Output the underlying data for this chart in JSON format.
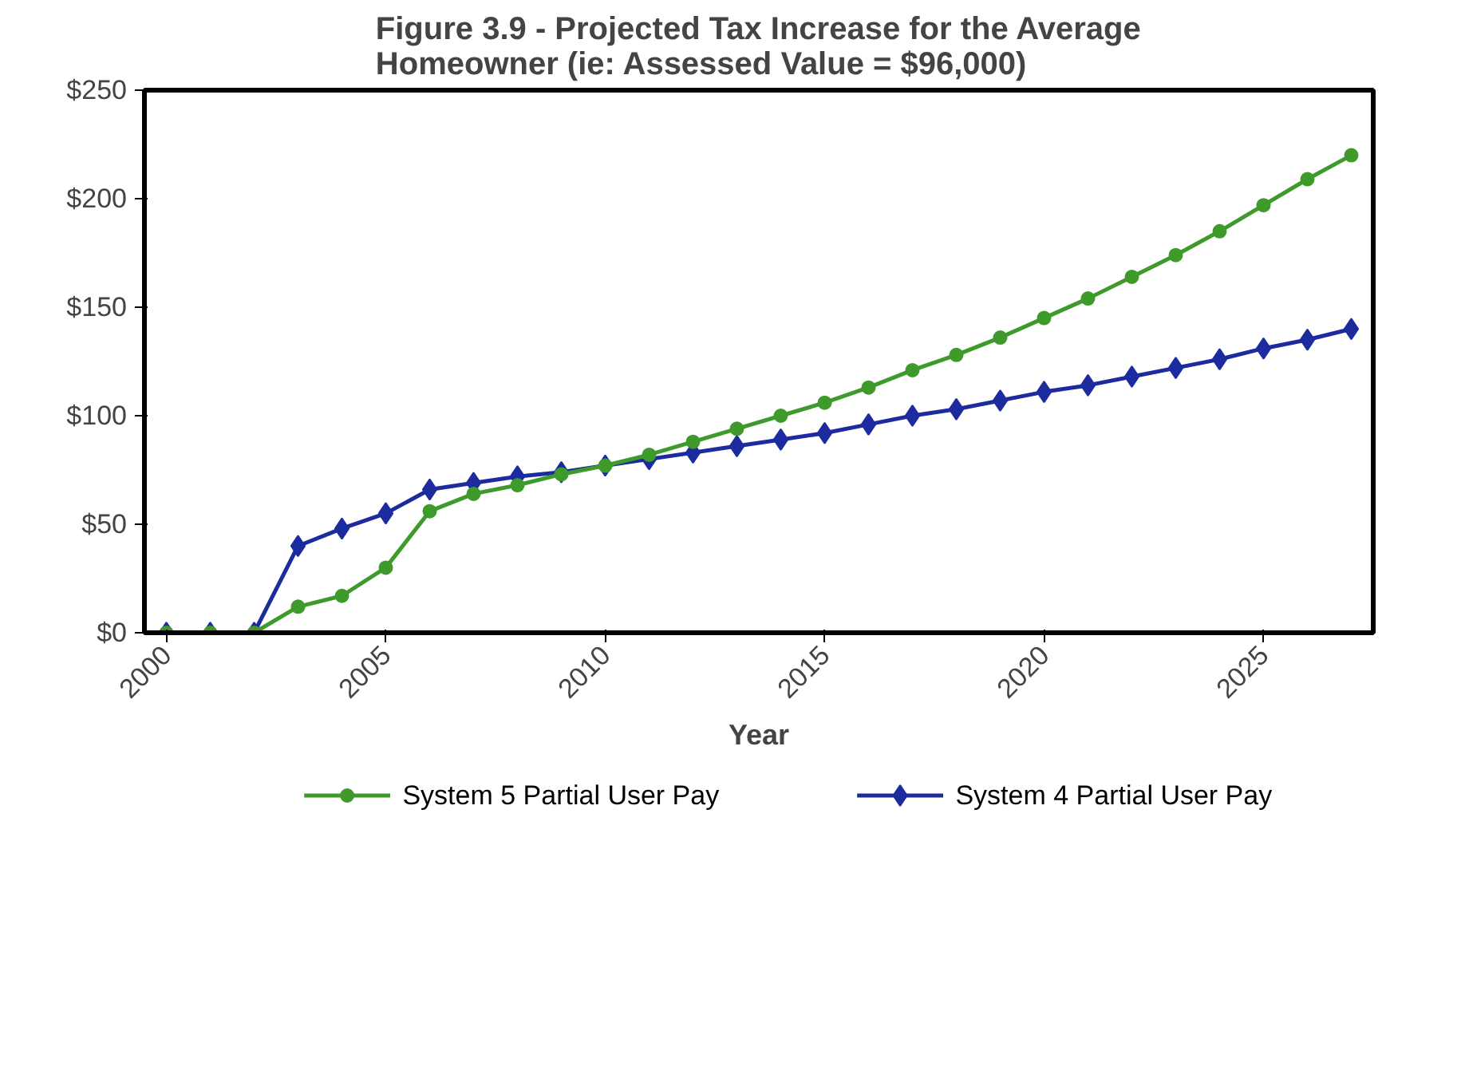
{
  "chart_data": {
    "type": "line",
    "title": "Figure 3.9 - Projected Tax Increase for the Average Homeowner (ie: Assessed Value = $96,000)",
    "xlabel": "Year",
    "x": [
      2000,
      2001,
      2002,
      2003,
      2004,
      2005,
      2006,
      2007,
      2008,
      2009,
      2010,
      2011,
      2012,
      2013,
      2014,
      2015,
      2016,
      2017,
      2018,
      2019,
      2020,
      2021,
      2022,
      2023,
      2024,
      2025,
      2026,
      2027
    ],
    "series": [
      {
        "name": "System 5 Partial User Pay",
        "color": "#3f9a2c",
        "marker": "circle",
        "values": [
          0,
          0,
          0,
          12,
          17,
          30,
          56,
          64,
          68,
          73,
          77,
          82,
          88,
          94,
          100,
          106,
          113,
          121,
          128,
          136,
          145,
          154,
          164,
          174,
          185,
          197,
          209,
          220
        ]
      },
      {
        "name": "System 4 Partial User Pay",
        "color": "#1c2b9e",
        "marker": "diamond",
        "values": [
          0,
          0,
          0,
          40,
          48,
          55,
          66,
          69,
          72,
          74,
          77,
          80,
          83,
          86,
          89,
          92,
          96,
          100,
          103,
          107,
          111,
          114,
          118,
          122,
          126,
          131,
          135,
          140
        ]
      }
    ],
    "xlim": [
      1999.5,
      2027.5
    ],
    "xticks": [
      2000,
      2005,
      2010,
      2015,
      2020,
      2025
    ],
    "ylim": [
      0,
      250
    ],
    "yticks": [
      {
        "value": 0,
        "label": "$0"
      },
      {
        "value": 50,
        "label": "$50"
      },
      {
        "value": 100,
        "label": "$100"
      },
      {
        "value": 150,
        "label": "$150"
      },
      {
        "value": 200,
        "label": "$200"
      },
      {
        "value": 250,
        "label": "$250"
      }
    ],
    "grid": false,
    "legend": "bottom",
    "line_style": "solid"
  }
}
